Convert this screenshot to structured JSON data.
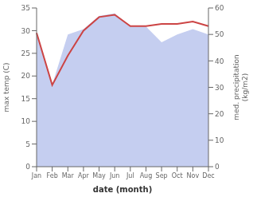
{
  "chart_data": {
    "type": "line",
    "xlabel": "date (month)",
    "ylabel": "max temp (C)",
    "y2label": "med. precipitation\n(kg/m2)",
    "categories": [
      "Jan",
      "Feb",
      "Mar",
      "Apr",
      "May",
      "Jun",
      "Jul",
      "Aug",
      "Sep",
      "Oct",
      "Nov",
      "Dec"
    ],
    "series": [
      {
        "type": "area",
        "axis": "y2",
        "color": "#c5cef0",
        "values": [
          50,
          31,
          50,
          52,
          57,
          58,
          53,
          53,
          47,
          50,
          52,
          50
        ]
      },
      {
        "type": "line",
        "color": "#cc4444",
        "values": [
          29.5,
          18.0,
          24.5,
          30.0,
          33.0,
          33.5,
          31.0,
          31.0,
          31.5,
          31.5,
          32.0,
          31.0
        ]
      }
    ],
    "ylim": [
      0,
      35
    ],
    "yticks": [
      0,
      5,
      10,
      15,
      20,
      25,
      30,
      35
    ],
    "y2lim": [
      0,
      60
    ],
    "y2ticks": [
      0,
      10,
      20,
      30,
      40,
      50,
      60
    ],
    "grid": false
  }
}
